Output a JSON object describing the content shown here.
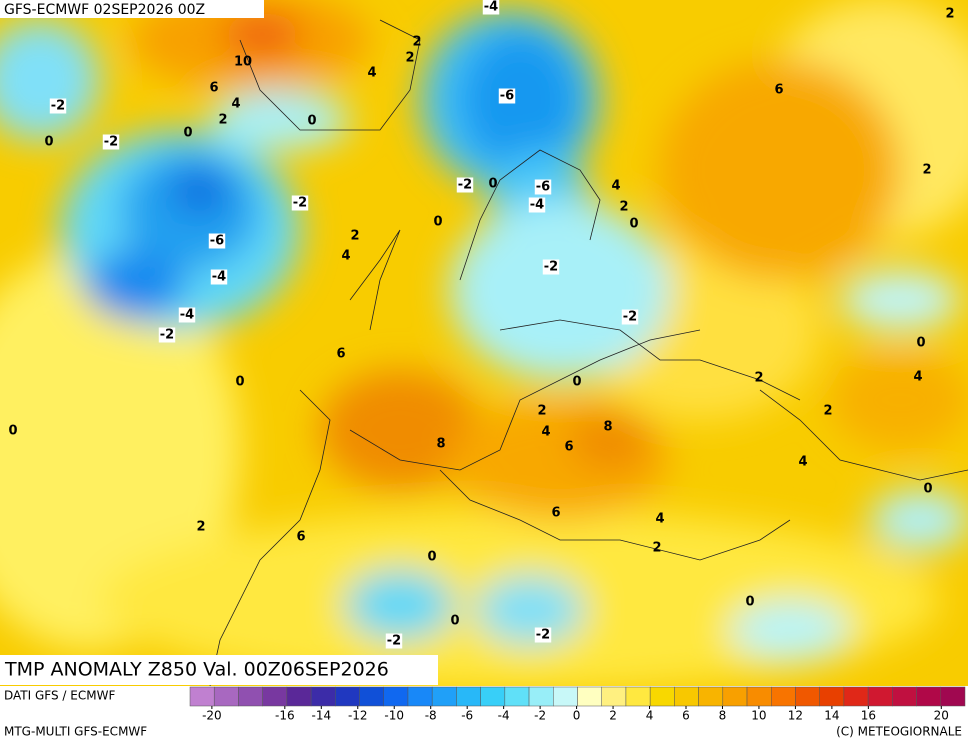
{
  "header": "GFS-ECMWF 02SEP2026 00Z",
  "map_title": "TMP ANOMALY Z850 Val. 00Z06SEP2026",
  "source": "DATI GFS / ECMWF",
  "model": "MTG-MULTI GFS-ECMWF",
  "copyright": "(C) METEOGIORNALE",
  "contour_labels": [
    -4,
    2,
    10,
    2,
    2,
    4,
    6,
    4,
    2,
    -6,
    6,
    -2,
    0,
    0,
    -2,
    0,
    2,
    -2,
    0,
    -6,
    4,
    -2,
    -4,
    2,
    0,
    0,
    -6,
    2,
    4,
    -2,
    -4,
    -4,
    -2,
    -2,
    0,
    6,
    2,
    4,
    0,
    0,
    2,
    2,
    4,
    8,
    0,
    8,
    6,
    4,
    0,
    6,
    4,
    2,
    6,
    2,
    0,
    0,
    0,
    -2,
    -2
  ],
  "colorbar": {
    "lim": [
      -21.2,
      21.3
    ],
    "ticks": [
      -20,
      -16,
      -14,
      -12,
      -10,
      -8,
      -6,
      -4,
      -2,
      0,
      2,
      4,
      6,
      8,
      10,
      12,
      14,
      16,
      20
    ],
    "colors": [
      "#c080d0",
      "#a868c0",
      "#9050b0",
      "#7838a0",
      "#5a2898",
      "#3c2ca8",
      "#2038c0",
      "#1050d8",
      "#1068f0",
      "#1888f8",
      "#20a0f8",
      "#28b8f8",
      "#38cff8",
      "#60e0f8",
      "#98eef8",
      "#c8f8f8",
      "#ffffc0",
      "#fff080",
      "#ffe840",
      "#f8d800",
      "#f8c800",
      "#f8b400",
      "#f8a000",
      "#f88c00",
      "#f87400",
      "#f05800",
      "#e84000",
      "#e02818",
      "#d01830",
      "#c01040",
      "#b00848",
      "#a00850"
    ]
  }
}
